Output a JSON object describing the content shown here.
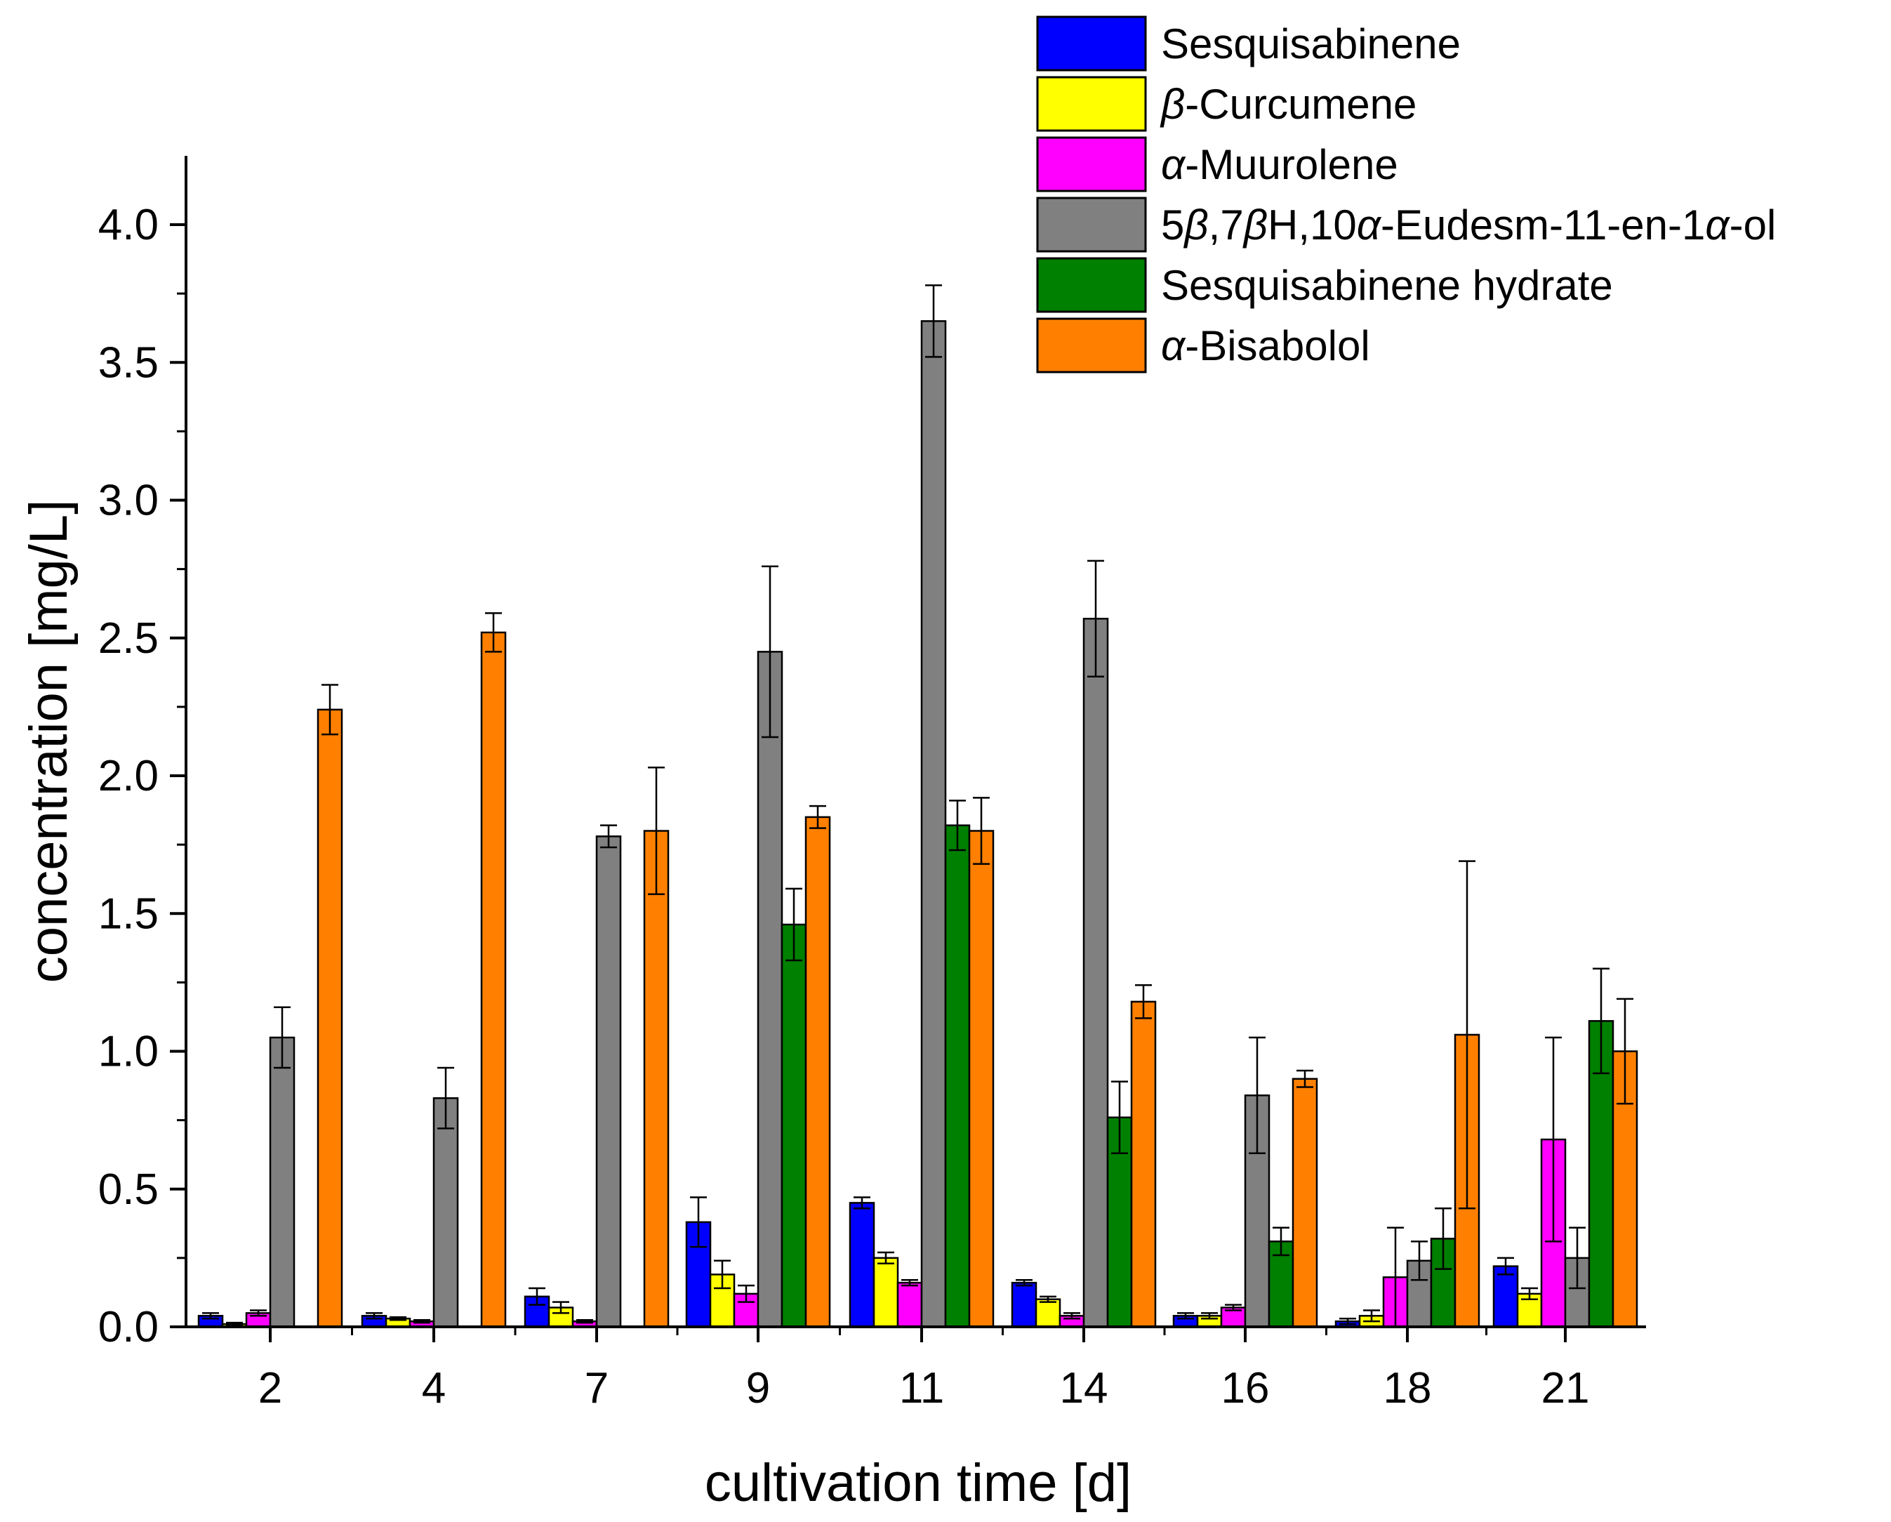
{
  "chart_data": {
    "type": "bar",
    "title": "",
    "xlabel": "cultivation time [d]",
    "ylabel": "concentration [mg/L]",
    "ylim": [
      0,
      4.25
    ],
    "yticks": [
      "0.0",
      "0.5",
      "1.0",
      "1.5",
      "2.0",
      "2.5",
      "3.0",
      "3.5",
      "4.0"
    ],
    "categories": [
      "2",
      "4",
      "7",
      "9",
      "11",
      "14",
      "16",
      "18",
      "21"
    ],
    "legend_position": "top-right",
    "series": [
      {
        "name": "Sesquisabinene",
        "legend_parts": [
          {
            "text": "Sesquisabinene",
            "italic": false
          }
        ],
        "color": "#0000ff",
        "values": [
          0.04,
          0.04,
          0.11,
          0.38,
          0.45,
          0.16,
          0.04,
          0.02,
          0.22
        ],
        "errors": [
          0.01,
          0.01,
          0.03,
          0.09,
          0.02,
          0.01,
          0.01,
          0.01,
          0.03
        ]
      },
      {
        "name": "β-Curcumene",
        "legend_parts": [
          {
            "text": "β",
            "italic": true
          },
          {
            "text": "-Curcumene",
            "italic": false
          }
        ],
        "color": "#ffff00",
        "values": [
          0.01,
          0.03,
          0.07,
          0.19,
          0.25,
          0.1,
          0.04,
          0.04,
          0.12
        ],
        "errors": [
          0.005,
          0.005,
          0.02,
          0.05,
          0.02,
          0.01,
          0.01,
          0.02,
          0.02
        ]
      },
      {
        "name": "α-Muurolene",
        "legend_parts": [
          {
            "text": "α",
            "italic": true
          },
          {
            "text": "-Muurolene",
            "italic": false
          }
        ],
        "color": "#ff00ff",
        "values": [
          0.05,
          0.02,
          0.02,
          0.12,
          0.16,
          0.04,
          0.07,
          0.18,
          0.68
        ],
        "errors": [
          0.01,
          0.005,
          0.005,
          0.03,
          0.01,
          0.01,
          0.01,
          0.18,
          0.37
        ]
      },
      {
        "name": "5β,7βH,10α-Eudesm-11-en-1α-ol",
        "legend_parts": [
          {
            "text": "5",
            "italic": false
          },
          {
            "text": "β",
            "italic": true
          },
          {
            "text": ",7",
            "italic": false
          },
          {
            "text": "β",
            "italic": true
          },
          {
            "text": "H,10",
            "italic": false
          },
          {
            "text": "α",
            "italic": true
          },
          {
            "text": "-Eudesm-11-en-1",
            "italic": false
          },
          {
            "text": "α",
            "italic": true
          },
          {
            "text": "-ol",
            "italic": false
          }
        ],
        "color": "#808080",
        "values": [
          1.05,
          0.83,
          1.78,
          2.45,
          3.65,
          2.57,
          0.84,
          0.24,
          0.25
        ],
        "errors": [
          0.11,
          0.11,
          0.04,
          0.31,
          0.13,
          0.21,
          0.21,
          0.07,
          0.11
        ]
      },
      {
        "name": "Sesquisabinene hydrate",
        "legend_parts": [
          {
            "text": "Sesquisabinene hydrate",
            "italic": false
          }
        ],
        "color": "#008000",
        "values": [
          0,
          0,
          0,
          1.46,
          1.82,
          0.76,
          0.31,
          0.32,
          1.11
        ],
        "errors": [
          0,
          0,
          0,
          0.13,
          0.09,
          0.13,
          0.05,
          0.11,
          0.19
        ]
      },
      {
        "name": "α-Bisabolol",
        "legend_parts": [
          {
            "text": "α",
            "italic": true
          },
          {
            "text": "-Bisabolol",
            "italic": false
          }
        ],
        "color": "#ff8000",
        "values": [
          2.24,
          2.52,
          1.8,
          1.85,
          1.8,
          1.18,
          0.9,
          1.06,
          1.0
        ],
        "errors": [
          0.09,
          0.07,
          0.23,
          0.04,
          0.12,
          0.06,
          0.03,
          0.63,
          0.19
        ]
      }
    ]
  }
}
